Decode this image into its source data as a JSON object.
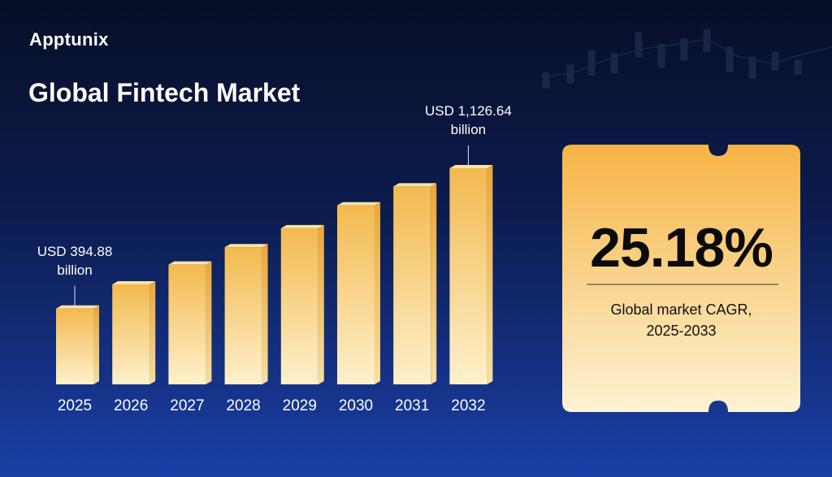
{
  "brand": "Apptunix",
  "chart_data": {
    "type": "bar",
    "title": "Global Fintech Market",
    "categories": [
      "2025",
      "2026",
      "2027",
      "2028",
      "2029",
      "2030",
      "2031",
      "2032"
    ],
    "values": [
      394.88,
      521,
      624,
      715,
      814,
      933,
      1032,
      1126.64
    ],
    "value_labels": [
      "USD 394.88 billion",
      null,
      null,
      null,
      null,
      null,
      null,
      "USD 1,126.64 billion"
    ],
    "color": "#f2b84b"
  },
  "callout": {
    "value": "25.18%",
    "caption": "Global market CAGR, 2025-2033"
  }
}
